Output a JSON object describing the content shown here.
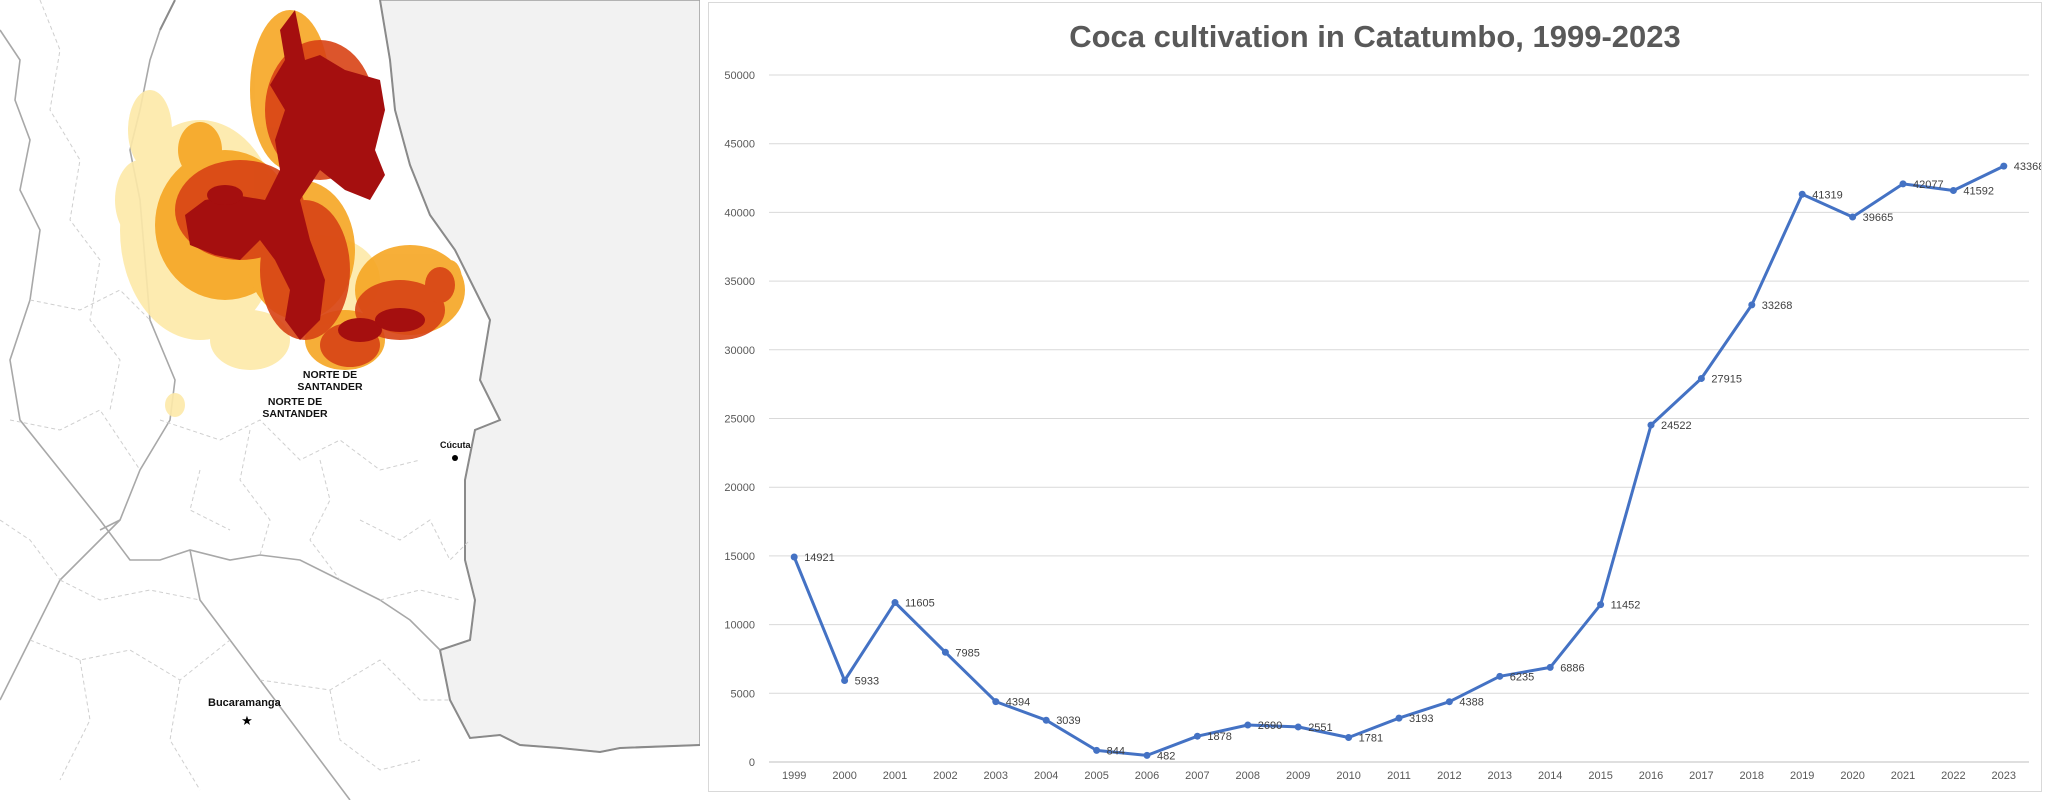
{
  "map": {
    "region_labels": [
      "NORTE DE SANTANDER",
      "NORTE DE SANTANDER"
    ],
    "city_labels": [
      "Cúcuta",
      "Bucaramanga"
    ],
    "colors": {
      "background": "#ffffff",
      "neighbor_area": "#f2f2f2",
      "border": "#bdbdbd",
      "density_high": "#a50f0f",
      "density_mid": "#d84315",
      "density_low": "#f6a623",
      "density_faint": "#fde9a8"
    }
  },
  "chart_data": {
    "type": "line",
    "title": "Coca cultivation in Catatumbo, 1999-2023",
    "x": [
      "1999",
      "2000",
      "2001",
      "2002",
      "2003",
      "2004",
      "2005",
      "2006",
      "2007",
      "2008",
      "2009",
      "2010",
      "2011",
      "2012",
      "2013",
      "2014",
      "2015",
      "2016",
      "2017",
      "2018",
      "2019",
      "2020",
      "2021",
      "2022",
      "2023"
    ],
    "series": [
      {
        "values": [
          14921,
          5933,
          11605,
          7985,
          4394,
          3039,
          844,
          482,
          1878,
          2690,
          2551,
          1781,
          3193,
          4388,
          6235,
          6886,
          11452,
          24522,
          27915,
          33268,
          41319,
          39665,
          42077,
          41592,
          43368
        ],
        "color": "#4472c4"
      }
    ],
    "ylim": [
      0,
      50000
    ],
    "yticks": [
      0,
      5000,
      10000,
      15000,
      20000,
      25000,
      30000,
      35000,
      40000,
      45000,
      50000
    ],
    "data_labels": true,
    "grid": true,
    "xlabel": "",
    "ylabel": ""
  }
}
